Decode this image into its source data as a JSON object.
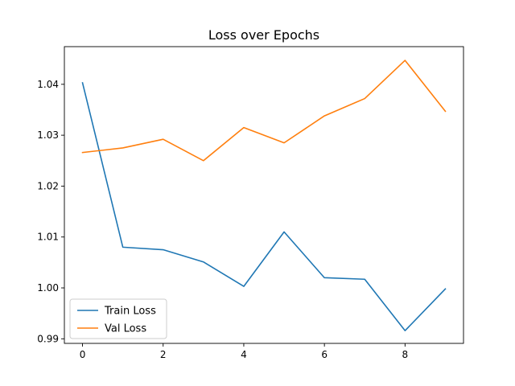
{
  "chart_data": {
    "type": "line",
    "title": "Loss over Epochs",
    "xlabel": "",
    "ylabel": "",
    "x": [
      0,
      1,
      2,
      3,
      4,
      5,
      6,
      7,
      8,
      9
    ],
    "xlim": [
      -0.45,
      9.45
    ],
    "ylim": [
      0.9891,
      1.0474
    ],
    "x_ticks": [
      0,
      2,
      4,
      6,
      8
    ],
    "y_ticks": [
      0.99,
      1.0,
      1.01,
      1.02,
      1.03,
      1.04
    ],
    "y_tick_labels": [
      "0.99",
      "1.00",
      "1.01",
      "1.02",
      "1.03",
      "1.04"
    ],
    "grid": false,
    "legend_position": "lower-left",
    "series": [
      {
        "name": "Train Loss",
        "color": "#1f77b4",
        "values": [
          1.0403,
          1.008,
          1.0075,
          1.0051,
          1.0003,
          1.011,
          1.002,
          1.0017,
          0.9916,
          0.9998
        ]
      },
      {
        "name": "Val Loss",
        "color": "#ff7f0e",
        "values": [
          1.0266,
          1.0275,
          1.0292,
          1.025,
          1.0315,
          1.0285,
          1.0338,
          1.0372,
          1.0447,
          1.0347
        ]
      }
    ]
  }
}
